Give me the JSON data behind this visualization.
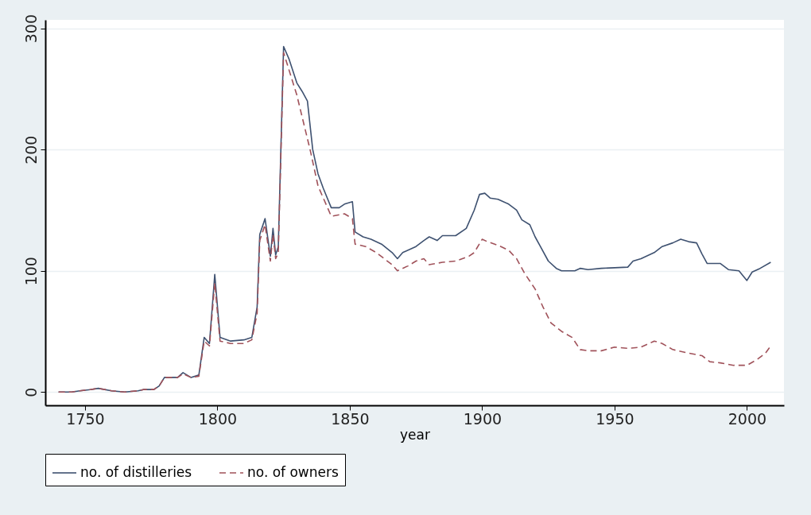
{
  "chart_data": {
    "type": "line",
    "xlabel": "year",
    "xlim": [
      1735,
      2014
    ],
    "xticks": [
      1750,
      1800,
      1850,
      1900,
      1950,
      2000
    ],
    "ylim": [
      -11,
      307
    ],
    "yticks": [
      0,
      100,
      200,
      300
    ],
    "grid": "y",
    "legend": "bottom",
    "series": [
      {
        "name": "no. of distilleries",
        "color": "#3e5170",
        "line_style": "solid",
        "x": [
          1740,
          1745,
          1748,
          1752,
          1755,
          1760,
          1765,
          1770,
          1772,
          1776,
          1778,
          1780,
          1785,
          1787,
          1790,
          1793,
          1795,
          1797,
          1799,
          1801,
          1805,
          1810,
          1813,
          1815,
          1816,
          1818,
          1820,
          1821,
          1822,
          1823,
          1825,
          1827,
          1830,
          1832,
          1834,
          1836,
          1838,
          1840,
          1843,
          1846,
          1848,
          1851,
          1852,
          1855,
          1858,
          1862,
          1866,
          1868,
          1870,
          1875,
          1878,
          1880,
          1883,
          1885,
          1890,
          1894,
          1897,
          1899,
          1901,
          1903,
          1906,
          1910,
          1913,
          1915,
          1918,
          1920,
          1922,
          1925,
          1928,
          1930,
          1935,
          1937,
          1940,
          1945,
          1955,
          1957,
          1960,
          1965,
          1968,
          1972,
          1975,
          1978,
          1981,
          1983,
          1985,
          1990,
          1993,
          1997,
          2000,
          2002,
          2005,
          2009
        ],
        "values": [
          0,
          0,
          1,
          2,
          3,
          1,
          0,
          1,
          2,
          2,
          5,
          12,
          12,
          16,
          12,
          14,
          45,
          40,
          97,
          45,
          42,
          43,
          45,
          70,
          130,
          143,
          112,
          135,
          113,
          120,
          285,
          275,
          255,
          248,
          240,
          200,
          180,
          168,
          152,
          152,
          155,
          157,
          132,
          128,
          126,
          122,
          115,
          110,
          115,
          120,
          125,
          128,
          125,
          129,
          129,
          135,
          150,
          163,
          164,
          160,
          159,
          155,
          150,
          142,
          138,
          128,
          120,
          108,
          102,
          100,
          100,
          102,
          101,
          102,
          103,
          108,
          110,
          115,
          120,
          123,
          126,
          124,
          123,
          114,
          106,
          106,
          101,
          100,
          92,
          99,
          102,
          107
        ]
      },
      {
        "name": "no. of owners",
        "color": "#a0525a",
        "line_style": "dashed",
        "x": [
          1740,
          1745,
          1748,
          1752,
          1755,
          1760,
          1765,
          1770,
          1772,
          1776,
          1778,
          1780,
          1785,
          1787,
          1790,
          1793,
          1795,
          1797,
          1799,
          1801,
          1805,
          1810,
          1813,
          1815,
          1816,
          1818,
          1820,
          1821,
          1822,
          1823,
          1825,
          1830,
          1835,
          1838,
          1840,
          1843,
          1848,
          1851,
          1852,
          1856,
          1860,
          1866,
          1868,
          1872,
          1875,
          1878,
          1880,
          1885,
          1890,
          1895,
          1897,
          1900,
          1902,
          1906,
          1910,
          1913,
          1916,
          1920,
          1923,
          1926,
          1930,
          1934,
          1937,
          1940,
          1945,
          1950,
          1955,
          1960,
          1965,
          1968,
          1972,
          1978,
          1983,
          1986,
          1990,
          1995,
          2000,
          2004,
          2007,
          2009
        ],
        "values": [
          0,
          0,
          1,
          2,
          3,
          1,
          0,
          1,
          2,
          2,
          5,
          12,
          12,
          15,
          12,
          13,
          42,
          38,
          90,
          42,
          40,
          40,
          43,
          65,
          125,
          138,
          108,
          130,
          110,
          115,
          280,
          245,
          200,
          170,
          160,
          145,
          147,
          143,
          122,
          120,
          115,
          105,
          100,
          104,
          108,
          110,
          105,
          107,
          108,
          112,
          115,
          126,
          124,
          121,
          117,
          110,
          98,
          85,
          70,
          57,
          50,
          45,
          35,
          34,
          34,
          37,
          36,
          37,
          42,
          40,
          35,
          32,
          30,
          25,
          24,
          22,
          22,
          27,
          32,
          38
        ]
      }
    ]
  }
}
